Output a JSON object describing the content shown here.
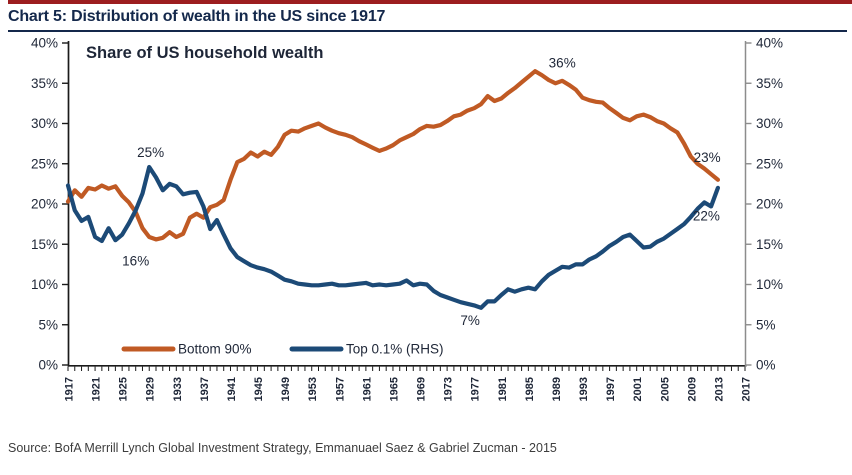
{
  "page": {
    "title": "Chart 5: Distribution of wealth in the US since 1917",
    "source_note": "Source: BofA Merrill Lynch Global Investment Strategy, Emmanuael Saez & Gabriel Zucman - 2015",
    "accent_bar_color": "#9C1D1F",
    "title_color": "#14284B",
    "text_color": "#1E2637",
    "axis_color": "#1A1A1A",
    "right_axis_color": "#8C8C8C"
  },
  "chart_data": {
    "type": "line",
    "title": "Share of US household wealth",
    "grid": false,
    "legend_position": "bottom-inside",
    "x_range": [
      1917,
      2017
    ],
    "y_range": [
      0,
      40
    ],
    "y_ticks": [
      0,
      5,
      10,
      15,
      20,
      25,
      30,
      35,
      40
    ],
    "y_tick_suffix": "%",
    "x_ticks": [
      1917,
      1921,
      1925,
      1929,
      1933,
      1937,
      1941,
      1945,
      1949,
      1953,
      1957,
      1961,
      1965,
      1969,
      1973,
      1977,
      1981,
      1985,
      1989,
      1993,
      1997,
      2001,
      2005,
      2009,
      2013,
      2017
    ],
    "years": [
      1917,
      1918,
      1919,
      1920,
      1921,
      1922,
      1923,
      1924,
      1925,
      1926,
      1927,
      1928,
      1929,
      1930,
      1931,
      1932,
      1933,
      1934,
      1935,
      1936,
      1937,
      1938,
      1939,
      1940,
      1941,
      1942,
      1943,
      1944,
      1945,
      1946,
      1947,
      1948,
      1949,
      1950,
      1951,
      1952,
      1953,
      1954,
      1955,
      1956,
      1957,
      1958,
      1959,
      1960,
      1961,
      1962,
      1963,
      1964,
      1965,
      1966,
      1967,
      1968,
      1969,
      1970,
      1971,
      1972,
      1973,
      1974,
      1975,
      1976,
      1977,
      1978,
      1979,
      1980,
      1981,
      1982,
      1983,
      1984,
      1985,
      1986,
      1987,
      1988,
      1989,
      1990,
      1991,
      1992,
      1993,
      1994,
      1995,
      1996,
      1997,
      1998,
      1999,
      2000,
      2001,
      2002,
      2003,
      2004,
      2005,
      2006,
      2007,
      2008,
      2009,
      2010,
      2011,
      2012,
      2013
    ],
    "series": [
      {
        "name": "Bottom 90%",
        "axis": "left",
        "color": "#C05A24",
        "values": [
          20.3,
          21.7,
          20.9,
          22.0,
          21.8,
          22.3,
          21.9,
          22.2,
          21.0,
          20.2,
          19.0,
          17.0,
          15.9,
          15.6,
          15.8,
          16.5,
          15.9,
          16.3,
          18.3,
          18.8,
          18.3,
          19.6,
          19.9,
          20.5,
          23.0,
          25.2,
          25.6,
          26.4,
          25.9,
          26.5,
          26.1,
          27.1,
          28.6,
          29.1,
          29.0,
          29.4,
          29.7,
          30.0,
          29.5,
          29.1,
          28.8,
          28.6,
          28.3,
          27.8,
          27.4,
          27.0,
          26.6,
          26.9,
          27.3,
          27.9,
          28.3,
          28.7,
          29.3,
          29.7,
          29.6,
          29.8,
          30.3,
          30.9,
          31.1,
          31.6,
          31.9,
          32.4,
          33.4,
          32.8,
          33.1,
          33.8,
          34.4,
          35.1,
          35.8,
          36.5,
          36.0,
          35.4,
          35.0,
          35.3,
          34.8,
          34.2,
          33.2,
          32.9,
          32.7,
          32.6,
          31.9,
          31.3,
          30.7,
          30.4,
          30.9,
          31.1,
          30.8,
          30.3,
          30.0,
          29.4,
          28.9,
          27.5,
          25.9,
          25.0,
          24.4,
          23.7,
          23.0
        ]
      },
      {
        "name": "Top 0.1% (RHS)",
        "axis": "right",
        "color": "#1C4A77",
        "values": [
          22.3,
          19.2,
          17.9,
          18.4,
          15.9,
          15.4,
          17.0,
          15.5,
          16.2,
          17.6,
          19.2,
          21.3,
          24.6,
          23.3,
          21.7,
          22.5,
          22.2,
          21.2,
          21.4,
          21.5,
          19.7,
          16.9,
          18.0,
          16.2,
          14.5,
          13.4,
          12.9,
          12.4,
          12.1,
          11.9,
          11.6,
          11.1,
          10.6,
          10.4,
          10.1,
          10.0,
          9.9,
          9.9,
          10.0,
          10.1,
          9.9,
          9.9,
          10.0,
          10.1,
          10.2,
          9.9,
          10.0,
          9.9,
          10.0,
          10.1,
          10.5,
          9.9,
          10.1,
          10.0,
          9.2,
          8.7,
          8.4,
          8.1,
          7.8,
          7.6,
          7.4,
          7.1,
          7.9,
          7.9,
          8.7,
          9.4,
          9.1,
          9.4,
          9.6,
          9.4,
          10.4,
          11.2,
          11.7,
          12.2,
          12.1,
          12.5,
          12.5,
          13.1,
          13.5,
          14.1,
          14.8,
          15.3,
          15.9,
          16.2,
          15.4,
          14.6,
          14.7,
          15.3,
          15.7,
          16.3,
          16.9,
          17.5,
          18.4,
          19.4,
          20.2,
          19.7,
          22.0
        ]
      }
    ],
    "annotations": [
      {
        "text": "25%",
        "year": 1929.2,
        "value": 26.4,
        "series": "Top 0.1% (RHS)"
      },
      {
        "text": "16%",
        "year": 1927.0,
        "value": 12.9,
        "series": "Bottom 90%"
      },
      {
        "text": "36%",
        "year": 1990.0,
        "value": 37.5,
        "series": "Bottom 90%"
      },
      {
        "text": "23%",
        "year": 2011.4,
        "value": 25.8,
        "series": "Bottom 90%"
      },
      {
        "text": "22%",
        "year": 2011.3,
        "value": 18.5,
        "series": "Top 0.1% (RHS)"
      },
      {
        "text": "7%",
        "year": 1976.4,
        "value": 5.5,
        "series": "Top 0.1% (RHS)"
      }
    ]
  }
}
